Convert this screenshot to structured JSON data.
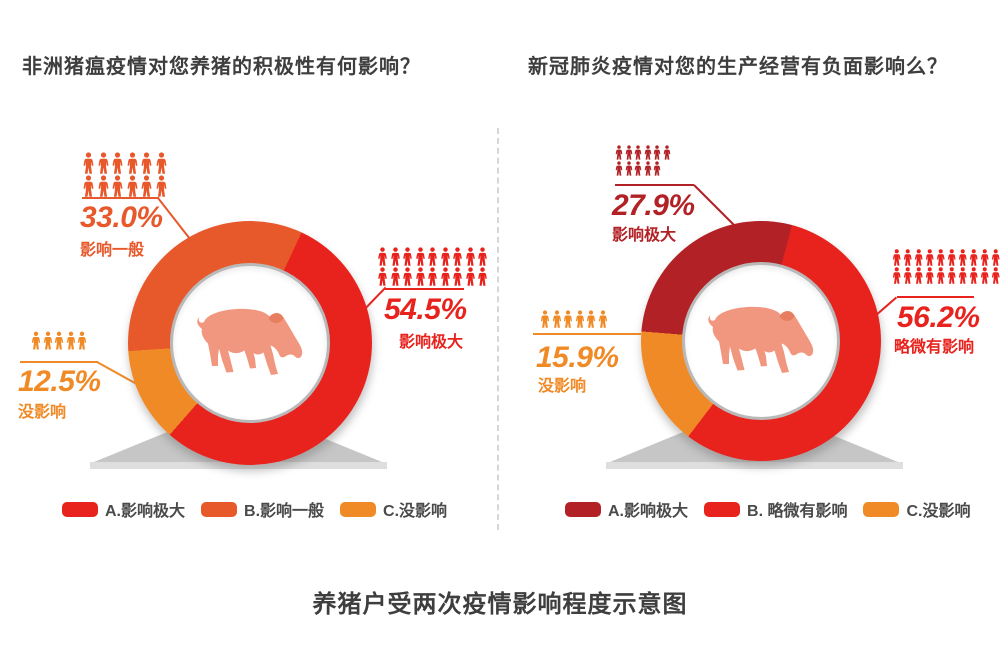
{
  "page": {
    "caption": "养猪户受两次疫情影响程度示意图"
  },
  "colors": {
    "red": "#E8231D",
    "orange_red": "#E7582B",
    "orange": "#F08A26",
    "dark_red": "#B22125",
    "title_text": "#3E3E3E",
    "legend_text": "#4A4A4A",
    "pig_body": "#F2977F",
    "pig_ear_shade": "#E67E5F",
    "pedestal_gray": "#C6C6C6",
    "inner_ring_gray": "#B9B9B9"
  },
  "charts": [
    {
      "question": "非洲猪瘟疫情对您养猪的积极性有何影响？",
      "donut": {
        "start_angle": 25,
        "segments": [
          {
            "label": "A.影响极大",
            "value": 54.5,
            "color": "#E8231D"
          },
          {
            "label": "C.没影响",
            "value": 12.5,
            "color": "#F08A26"
          },
          {
            "label": "B.影响一般",
            "value": 33.0,
            "color": "#E7582B"
          }
        ]
      },
      "callouts": [
        {
          "pct": "33.0%",
          "name": "影响一般",
          "color": "#E7582B",
          "icon_rows": [
            6,
            6
          ]
        },
        {
          "pct": "54.5%",
          "name": "影响极大",
          "color": "#E8231D",
          "icon_rows": [
            9,
            9
          ]
        },
        {
          "pct": "12.5%",
          "name": "没影响",
          "color": "#F08A26",
          "icon_rows": [
            5
          ]
        }
      ],
      "legend": [
        {
          "label": "A.影响极大",
          "color": "#E8231D"
        },
        {
          "label": "B.影响一般",
          "color": "#E7582B"
        },
        {
          "label": "C.没影响",
          "color": "#F08A26"
        }
      ]
    },
    {
      "question": "新冠肺炎疫情对您的生产经营有负面影响么？",
      "donut": {
        "start_angle": 15,
        "segments": [
          {
            "label": "B.略微有影响",
            "value": 56.2,
            "color": "#E8231D"
          },
          {
            "label": "C.没影响",
            "value": 15.9,
            "color": "#F08A26"
          },
          {
            "label": "A.影响极大",
            "value": 27.9,
            "color": "#B22125"
          }
        ]
      },
      "callouts": [
        {
          "pct": "27.9%",
          "name": "影响极大",
          "color": "#B22125",
          "icon_rows": [
            6,
            5
          ]
        },
        {
          "pct": "56.2%",
          "name": "略微有影响",
          "color": "#E8231D",
          "icon_rows": [
            10,
            10
          ]
        },
        {
          "pct": "15.9%",
          "name": "没影响",
          "color": "#F08A26",
          "icon_rows": [
            6
          ]
        }
      ],
      "legend": [
        {
          "label": "A.影响极大",
          "color": "#B22125"
        },
        {
          "label": "B. 略微有影响",
          "color": "#E8231D"
        },
        {
          "label": "C.没影响",
          "color": "#F08A26"
        }
      ]
    }
  ],
  "chart_data": [
    {
      "type": "pie",
      "donut": true,
      "title": "非洲猪瘟疫情对您养猪的积极性有何影响？",
      "labels": [
        "A.影响极大",
        "B.影响一般",
        "C.没影响"
      ],
      "values": [
        54.5,
        33.0,
        12.5
      ],
      "unit": "%",
      "colors": [
        "#E8231D",
        "#E7582B",
        "#F08A26"
      ],
      "legend_position": "bottom"
    },
    {
      "type": "pie",
      "donut": true,
      "title": "新冠肺炎疫情对您的生产经营有负面影响么？",
      "labels": [
        "A.影响极大",
        "B.略微有影响",
        "C.没影响"
      ],
      "values": [
        27.9,
        56.2,
        15.9
      ],
      "unit": "%",
      "colors": [
        "#B22125",
        "#E8231D",
        "#F08A26"
      ],
      "legend_position": "bottom"
    }
  ]
}
